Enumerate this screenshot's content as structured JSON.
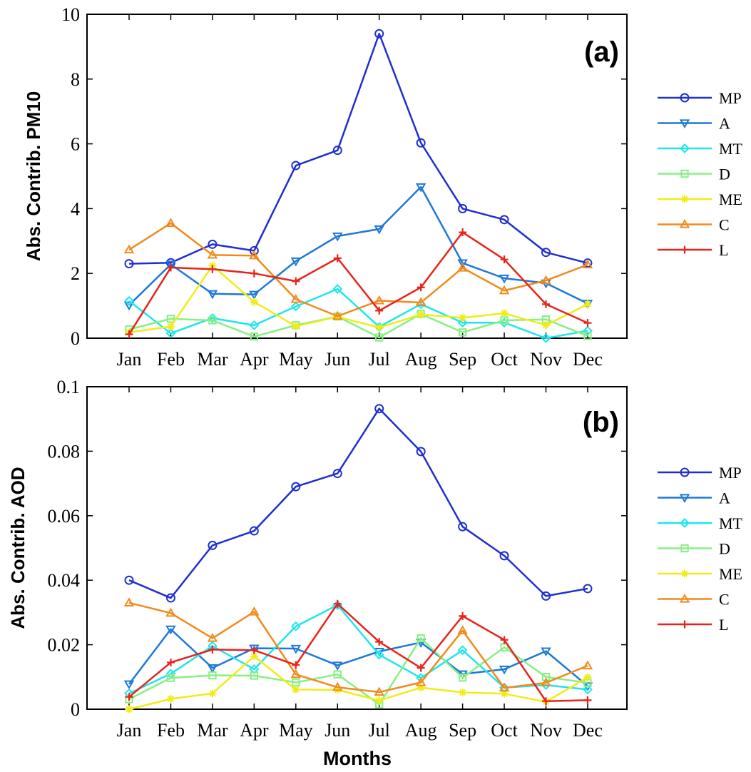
{
  "chart_data": [
    {
      "type": "line",
      "panel_label": "(a)",
      "ylabel": "Abs. Contrib. PM10",
      "xlabel": "",
      "categories": [
        "Jan",
        "Feb",
        "Mar",
        "Apr",
        "May",
        "Jun",
        "Jul",
        "Aug",
        "Sep",
        "Oct",
        "Nov",
        "Dec"
      ],
      "ylim": [
        0,
        10
      ],
      "yticks": [
        "0",
        "2",
        "4",
        "6",
        "8",
        "10"
      ],
      "legend_position": "right",
      "series": [
        {
          "name": "MP",
          "color": "#1f2fd0",
          "marker": "circle",
          "values": [
            2.3,
            2.33,
            2.9,
            2.7,
            5.33,
            5.8,
            9.4,
            6.03,
            4.0,
            3.66,
            2.65,
            2.32
          ]
        },
        {
          "name": "A",
          "color": "#1e78d8",
          "marker": "triangle-down",
          "values": [
            1.02,
            2.28,
            1.37,
            1.35,
            2.38,
            3.15,
            3.37,
            4.67,
            2.32,
            1.85,
            1.7,
            1.07
          ]
        },
        {
          "name": "MT",
          "color": "#1fe5ee",
          "marker": "diamond",
          "values": [
            1.15,
            0.15,
            0.62,
            0.4,
            0.98,
            1.52,
            0.35,
            1.05,
            0.48,
            0.48,
            0.0,
            0.23
          ]
        },
        {
          "name": "D",
          "color": "#88ef84",
          "marker": "square",
          "values": [
            0.27,
            0.6,
            0.55,
            0.05,
            0.4,
            0.67,
            0.02,
            0.75,
            0.18,
            0.55,
            0.58,
            0.07
          ]
        },
        {
          "name": "ME",
          "color": "#f0ec18",
          "marker": "asterisk",
          "values": [
            0.18,
            0.36,
            2.24,
            1.12,
            0.37,
            0.66,
            0.33,
            0.73,
            0.63,
            0.77,
            0.4,
            1.05
          ]
        },
        {
          "name": "C",
          "color": "#f28a1a",
          "marker": "triangle-up",
          "values": [
            2.73,
            3.55,
            2.57,
            2.55,
            1.2,
            0.68,
            1.16,
            1.1,
            2.17,
            1.47,
            1.78,
            2.27
          ]
        },
        {
          "name": "L",
          "color": "#e8231c",
          "marker": "plus",
          "values": [
            0.12,
            2.18,
            2.13,
            2.0,
            1.76,
            2.47,
            0.85,
            1.57,
            3.27,
            2.43,
            1.05,
            0.47
          ]
        }
      ]
    },
    {
      "type": "line",
      "panel_label": "(b)",
      "ylabel": "Abs. Contrib. AOD",
      "xlabel": "Months",
      "categories": [
        "Jan",
        "Feb",
        "Mar",
        "Apr",
        "May",
        "Jun",
        "Jul",
        "Aug",
        "Sep",
        "Oct",
        "Nov",
        "Dec"
      ],
      "ylim": [
        0,
        0.1
      ],
      "yticks": [
        "0",
        "0.02",
        "0.04",
        "0.06",
        "0.08",
        "0.1"
      ],
      "legend_position": "right",
      "series": [
        {
          "name": "MP",
          "color": "#1f2fd0",
          "marker": "circle",
          "values": [
            0.04,
            0.0345,
            0.0508,
            0.0553,
            0.069,
            0.0731,
            0.0932,
            0.0799,
            0.0566,
            0.0476,
            0.0351,
            0.0374
          ]
        },
        {
          "name": "A",
          "color": "#1e78d8",
          "marker": "triangle-down",
          "values": [
            0.0078,
            0.0248,
            0.0128,
            0.0189,
            0.0188,
            0.0136,
            0.0179,
            0.0207,
            0.0109,
            0.0124,
            0.018,
            0.0072
          ]
        },
        {
          "name": "MT",
          "color": "#1fe5ee",
          "marker": "diamond",
          "values": [
            0.0049,
            0.011,
            0.0196,
            0.0124,
            0.0257,
            0.0323,
            0.0169,
            0.0097,
            0.0183,
            0.0067,
            0.0075,
            0.0061
          ]
        },
        {
          "name": "D",
          "color": "#88ef84",
          "marker": "square",
          "values": [
            0.0031,
            0.0097,
            0.0105,
            0.0104,
            0.0083,
            0.0108,
            0.0015,
            0.022,
            0.0098,
            0.0192,
            0.01,
            0.0082
          ]
        },
        {
          "name": "ME",
          "color": "#f0ec18",
          "marker": "asterisk",
          "values": [
            0.0,
            0.0032,
            0.0049,
            0.0164,
            0.0061,
            0.006,
            0.0027,
            0.0067,
            0.0052,
            0.0048,
            0.0023,
            0.0099
          ]
        },
        {
          "name": "C",
          "color": "#f28a1a",
          "marker": "triangle-up",
          "values": [
            0.033,
            0.0298,
            0.022,
            0.0302,
            0.0108,
            0.0068,
            0.0053,
            0.0083,
            0.0244,
            0.0066,
            0.0082,
            0.0135
          ]
        },
        {
          "name": "L",
          "color": "#e8231c",
          "marker": "plus",
          "values": [
            0.0038,
            0.0145,
            0.0185,
            0.0183,
            0.0137,
            0.0327,
            0.0209,
            0.0128,
            0.0289,
            0.0215,
            0.0025,
            0.0028
          ]
        }
      ]
    }
  ]
}
